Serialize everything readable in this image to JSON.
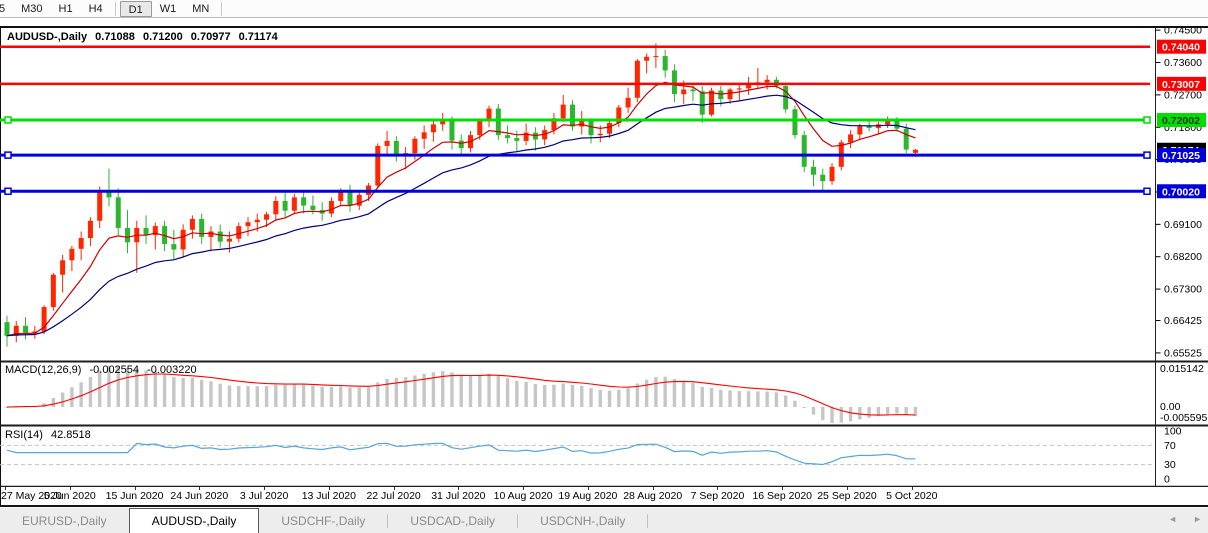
{
  "toolbar": {
    "timeframes": [
      "5",
      "M30",
      "H1",
      "H4",
      "D1",
      "W1",
      "MN"
    ],
    "active_timeframe": "D1"
  },
  "chart_header": {
    "symbol": "AUDUSD-,Daily",
    "open": "0.71088",
    "high": "0.71200",
    "low": "0.70977",
    "close": "0.71174"
  },
  "chart_data": {
    "type": "candlestick",
    "title": "AUDUSD-,Daily",
    "symbol": "AUDUSD",
    "timeframe": "Daily",
    "x_axis_labels": [
      "27 May 2020",
      "5 Jun 2020",
      "15 Jun 2020",
      "24 Jun 2020",
      "3 Jul 2020",
      "13 Jul 2020",
      "22 Jul 2020",
      "31 Jul 2020",
      "10 Aug 2020",
      "19 Aug 2020",
      "28 Aug 2020",
      "7 Sep 2020",
      "16 Sep 2020",
      "25 Sep 2020",
      "5 Oct 2020"
    ],
    "price_axis_ticks": [
      "0.74500",
      "0.73600",
      "0.72700",
      "0.71800",
      "0.70900",
      "0.70000",
      "0.69100",
      "0.68200",
      "0.67300",
      "0.66425",
      "0.65525"
    ],
    "price_range": {
      "max": 0.7456,
      "min": 0.653
    },
    "candles": [
      [
        0.6638,
        0.6656,
        0.657,
        0.66
      ],
      [
        0.66,
        0.6641,
        0.6582,
        0.6628
      ],
      [
        0.6628,
        0.6652,
        0.659,
        0.6607
      ],
      [
        0.6607,
        0.6628,
        0.6592,
        0.6612
      ],
      [
        0.6612,
        0.6685,
        0.6605,
        0.668
      ],
      [
        0.668,
        0.6775,
        0.667,
        0.677
      ],
      [
        0.677,
        0.6825,
        0.672,
        0.681
      ],
      [
        0.681,
        0.685,
        0.678,
        0.6842
      ],
      [
        0.6842,
        0.689,
        0.681,
        0.6872
      ],
      [
        0.6872,
        0.693,
        0.685,
        0.692
      ],
      [
        0.692,
        0.7015,
        0.69,
        0.7
      ],
      [
        0.7,
        0.7065,
        0.696,
        0.6985
      ],
      [
        0.6985,
        0.701,
        0.688,
        0.69
      ],
      [
        0.69,
        0.695,
        0.683,
        0.686
      ],
      [
        0.686,
        0.692,
        0.6775,
        0.69
      ],
      [
        0.69,
        0.6935,
        0.6855,
        0.688
      ],
      [
        0.688,
        0.6915,
        0.684,
        0.6905
      ],
      [
        0.6905,
        0.692,
        0.6835,
        0.6855
      ],
      [
        0.6855,
        0.6895,
        0.681,
        0.684
      ],
      [
        0.684,
        0.691,
        0.682,
        0.6895
      ],
      [
        0.6895,
        0.6935,
        0.687,
        0.6925
      ],
      [
        0.6925,
        0.694,
        0.6855,
        0.6875
      ],
      [
        0.6875,
        0.6905,
        0.6835,
        0.689
      ],
      [
        0.689,
        0.691,
        0.6845,
        0.6862
      ],
      [
        0.6862,
        0.689,
        0.6832,
        0.687
      ],
      [
        0.687,
        0.6915,
        0.686,
        0.6905
      ],
      [
        0.6905,
        0.693,
        0.6877,
        0.6916
      ],
      [
        0.6916,
        0.694,
        0.689,
        0.6923
      ],
      [
        0.6923,
        0.6945,
        0.6902,
        0.6938
      ],
      [
        0.6938,
        0.6988,
        0.692,
        0.6975
      ],
      [
        0.6975,
        0.6998,
        0.693,
        0.6948
      ],
      [
        0.6948,
        0.6995,
        0.6938,
        0.6985
      ],
      [
        0.6985,
        0.7,
        0.694,
        0.6962
      ],
      [
        0.6962,
        0.699,
        0.6938,
        0.695
      ],
      [
        0.695,
        0.6972,
        0.692,
        0.694
      ],
      [
        0.694,
        0.6985,
        0.693,
        0.6975
      ],
      [
        0.6975,
        0.701,
        0.696,
        0.7
      ],
      [
        0.7,
        0.702,
        0.6945,
        0.6962
      ],
      [
        0.6962,
        0.7,
        0.695,
        0.6992
      ],
      [
        0.6992,
        0.7025,
        0.6975,
        0.7018
      ],
      [
        0.7018,
        0.7135,
        0.701,
        0.7128
      ],
      [
        0.7128,
        0.717,
        0.71,
        0.7142
      ],
      [
        0.7142,
        0.7155,
        0.7085,
        0.7102
      ],
      [
        0.7102,
        0.7125,
        0.7063,
        0.7108
      ],
      [
        0.7108,
        0.7155,
        0.709,
        0.7148
      ],
      [
        0.7148,
        0.7185,
        0.712,
        0.7166
      ],
      [
        0.7166,
        0.7198,
        0.714,
        0.7188
      ],
      [
        0.7188,
        0.722,
        0.717,
        0.7196
      ],
      [
        0.7196,
        0.721,
        0.7118,
        0.7143
      ],
      [
        0.7143,
        0.716,
        0.71,
        0.7122
      ],
      [
        0.7122,
        0.717,
        0.711,
        0.7158
      ],
      [
        0.7158,
        0.7205,
        0.7145,
        0.7198
      ],
      [
        0.7198,
        0.724,
        0.718,
        0.7232
      ],
      [
        0.7232,
        0.7245,
        0.7145,
        0.7158
      ],
      [
        0.7158,
        0.7185,
        0.7135,
        0.715
      ],
      [
        0.715,
        0.717,
        0.711,
        0.7142
      ],
      [
        0.7142,
        0.719,
        0.713,
        0.7165
      ],
      [
        0.7165,
        0.718,
        0.7115,
        0.7146
      ],
      [
        0.7146,
        0.7185,
        0.713,
        0.7172
      ],
      [
        0.7172,
        0.722,
        0.716,
        0.7205
      ],
      [
        0.7205,
        0.727,
        0.7195,
        0.7243
      ],
      [
        0.7243,
        0.7255,
        0.717,
        0.7182
      ],
      [
        0.7182,
        0.7225,
        0.716,
        0.7196
      ],
      [
        0.7196,
        0.7205,
        0.7135,
        0.7158
      ],
      [
        0.7158,
        0.7185,
        0.7138,
        0.7162
      ],
      [
        0.7162,
        0.72,
        0.715,
        0.7192
      ],
      [
        0.7192,
        0.7242,
        0.718,
        0.7235
      ],
      [
        0.7235,
        0.729,
        0.722,
        0.7262
      ],
      [
        0.7262,
        0.737,
        0.725,
        0.7365
      ],
      [
        0.7365,
        0.7385,
        0.733,
        0.7376
      ],
      [
        0.7376,
        0.7413,
        0.7345,
        0.7378
      ],
      [
        0.7378,
        0.7395,
        0.7318,
        0.7338
      ],
      [
        0.7338,
        0.7355,
        0.725,
        0.7272
      ],
      [
        0.7272,
        0.731,
        0.7245,
        0.7285
      ],
      [
        0.7285,
        0.73,
        0.7252,
        0.728
      ],
      [
        0.728,
        0.7295,
        0.7192,
        0.7215
      ],
      [
        0.7215,
        0.729,
        0.721,
        0.7282
      ],
      [
        0.7282,
        0.7295,
        0.7238,
        0.7258
      ],
      [
        0.7258,
        0.729,
        0.7245,
        0.7285
      ],
      [
        0.7285,
        0.73,
        0.7255,
        0.7288
      ],
      [
        0.7288,
        0.732,
        0.727,
        0.7302
      ],
      [
        0.7302,
        0.7345,
        0.729,
        0.7305
      ],
      [
        0.7305,
        0.7325,
        0.7285,
        0.7312
      ],
      [
        0.7312,
        0.732,
        0.7288,
        0.7295
      ],
      [
        0.7295,
        0.73,
        0.722,
        0.723
      ],
      [
        0.723,
        0.724,
        0.7148,
        0.7158
      ],
      [
        0.7158,
        0.717,
        0.7055,
        0.707
      ],
      [
        0.707,
        0.709,
        0.7016,
        0.7048
      ],
      [
        0.7048,
        0.7065,
        0.7006,
        0.703
      ],
      [
        0.703,
        0.708,
        0.702,
        0.707
      ],
      [
        0.707,
        0.7145,
        0.706,
        0.7138
      ],
      [
        0.7138,
        0.7172,
        0.7122,
        0.716
      ],
      [
        0.716,
        0.719,
        0.7145,
        0.7183
      ],
      [
        0.7183,
        0.7196,
        0.7168,
        0.7178
      ],
      [
        0.7178,
        0.7195,
        0.716,
        0.7188
      ],
      [
        0.7188,
        0.721,
        0.7178,
        0.7202
      ],
      [
        0.7202,
        0.7208,
        0.7168,
        0.7176
      ],
      [
        0.7176,
        0.719,
        0.7108,
        0.7118
      ],
      [
        0.71088,
        0.712,
        0.70977,
        0.71174
      ]
    ],
    "horizontal_levels": [
      {
        "price": 0.7404,
        "label": "0.74040",
        "color": "#ff0000",
        "text_color": "#ffffff",
        "handles": false,
        "thickness": 2.5
      },
      {
        "price": 0.73007,
        "label": "0.73007",
        "color": "#ff0000",
        "text_color": "#ffffff",
        "handles": false,
        "thickness": 2.5
      },
      {
        "price": 0.72002,
        "label": "0.72002",
        "color": "#00dd00",
        "text_color": "#003300",
        "handles": true,
        "thickness": 3
      },
      {
        "price": 0.71025,
        "label": "0.71025",
        "color": "#0000dd",
        "text_color": "#ffffff",
        "handles": true,
        "thickness": 3
      },
      {
        "price": 0.7002,
        "label": "0.70020",
        "color": "#0000dd",
        "text_color": "#ffffff",
        "handles": true,
        "thickness": 3
      }
    ],
    "current_price": {
      "value": 0.71174,
      "label": "0.71174",
      "badge_color": "#000000",
      "text_color": "#ffffff"
    },
    "moving_averages": [
      {
        "name": "ma-fast",
        "period": 8,
        "color": "#cc0000"
      },
      {
        "name": "ma-slow",
        "period": 21,
        "color": "#00007d"
      }
    ],
    "indicators": {
      "macd": {
        "name": "MACD(12,26,9)",
        "fast": 12,
        "slow": 26,
        "signal_period": 9,
        "main_value": "-0.002554",
        "signal_value": "-0.003220",
        "scale_labels": [
          "0.015142",
          "0.00",
          "-0.005595"
        ],
        "histogram_color": "#c6c6c6",
        "signal_color": "#ff0000"
      },
      "rsi": {
        "name": "RSI(14)",
        "period": 14,
        "value": "42.8518",
        "scale_labels": [
          "100",
          "70",
          "30",
          "0"
        ],
        "levels": [
          70,
          30
        ],
        "line_color": "#56a5d8",
        "level_line_color": "#c4c4c4"
      }
    },
    "colors": {
      "bull": "#ff2600",
      "bear": "#2db52d",
      "background": "#ffffff",
      "axis_text": "#000000",
      "panel_border": "#1c1c1c"
    }
  },
  "tabs": {
    "items": [
      {
        "label": "EURUSD-,Daily",
        "active": false
      },
      {
        "label": "AUDUSD-,Daily",
        "active": true
      },
      {
        "label": "USDCHF-,Daily",
        "active": false
      },
      {
        "label": "USDCAD-,Daily",
        "active": false
      },
      {
        "label": "USDCNH-,Daily",
        "active": false
      }
    ],
    "scroll_left_icon": "◄",
    "scroll_right_icon": "►"
  }
}
